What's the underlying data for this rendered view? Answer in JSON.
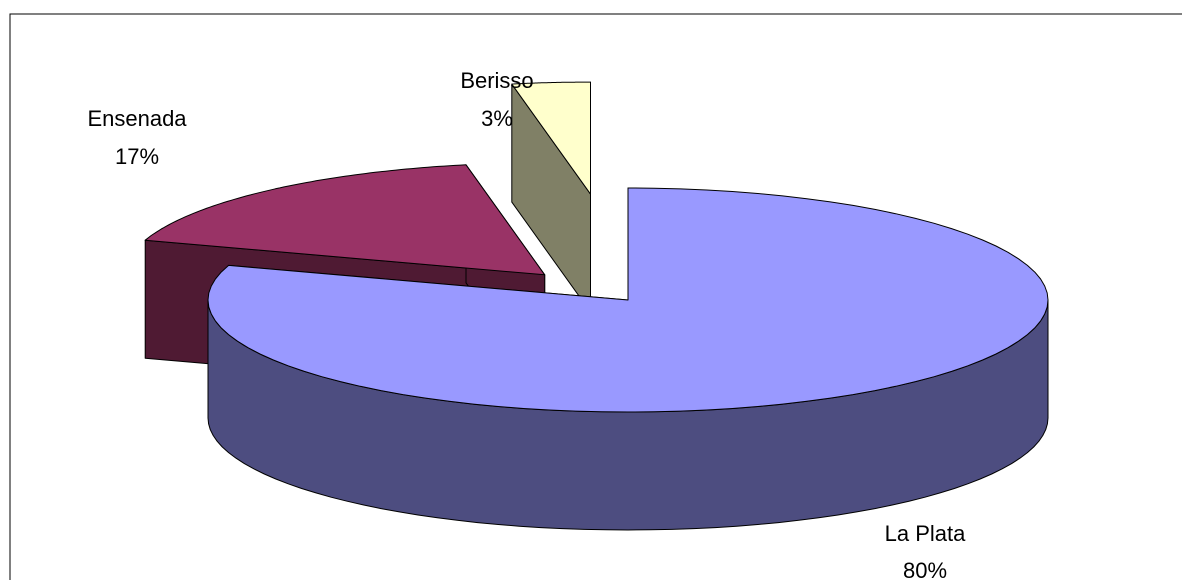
{
  "chart_data": {
    "type": "pie",
    "three_d": true,
    "categories": [
      "La Plata",
      "Ensenada",
      "Berisso"
    ],
    "values": [
      80,
      17,
      3
    ],
    "value_labels": [
      "80%",
      "17%",
      "3%"
    ],
    "colors": [
      "#9999ff",
      "#993366",
      "#ffffcc"
    ],
    "side_colors": [
      "#4d4d80",
      "#4f1a33",
      "#808066"
    ]
  }
}
